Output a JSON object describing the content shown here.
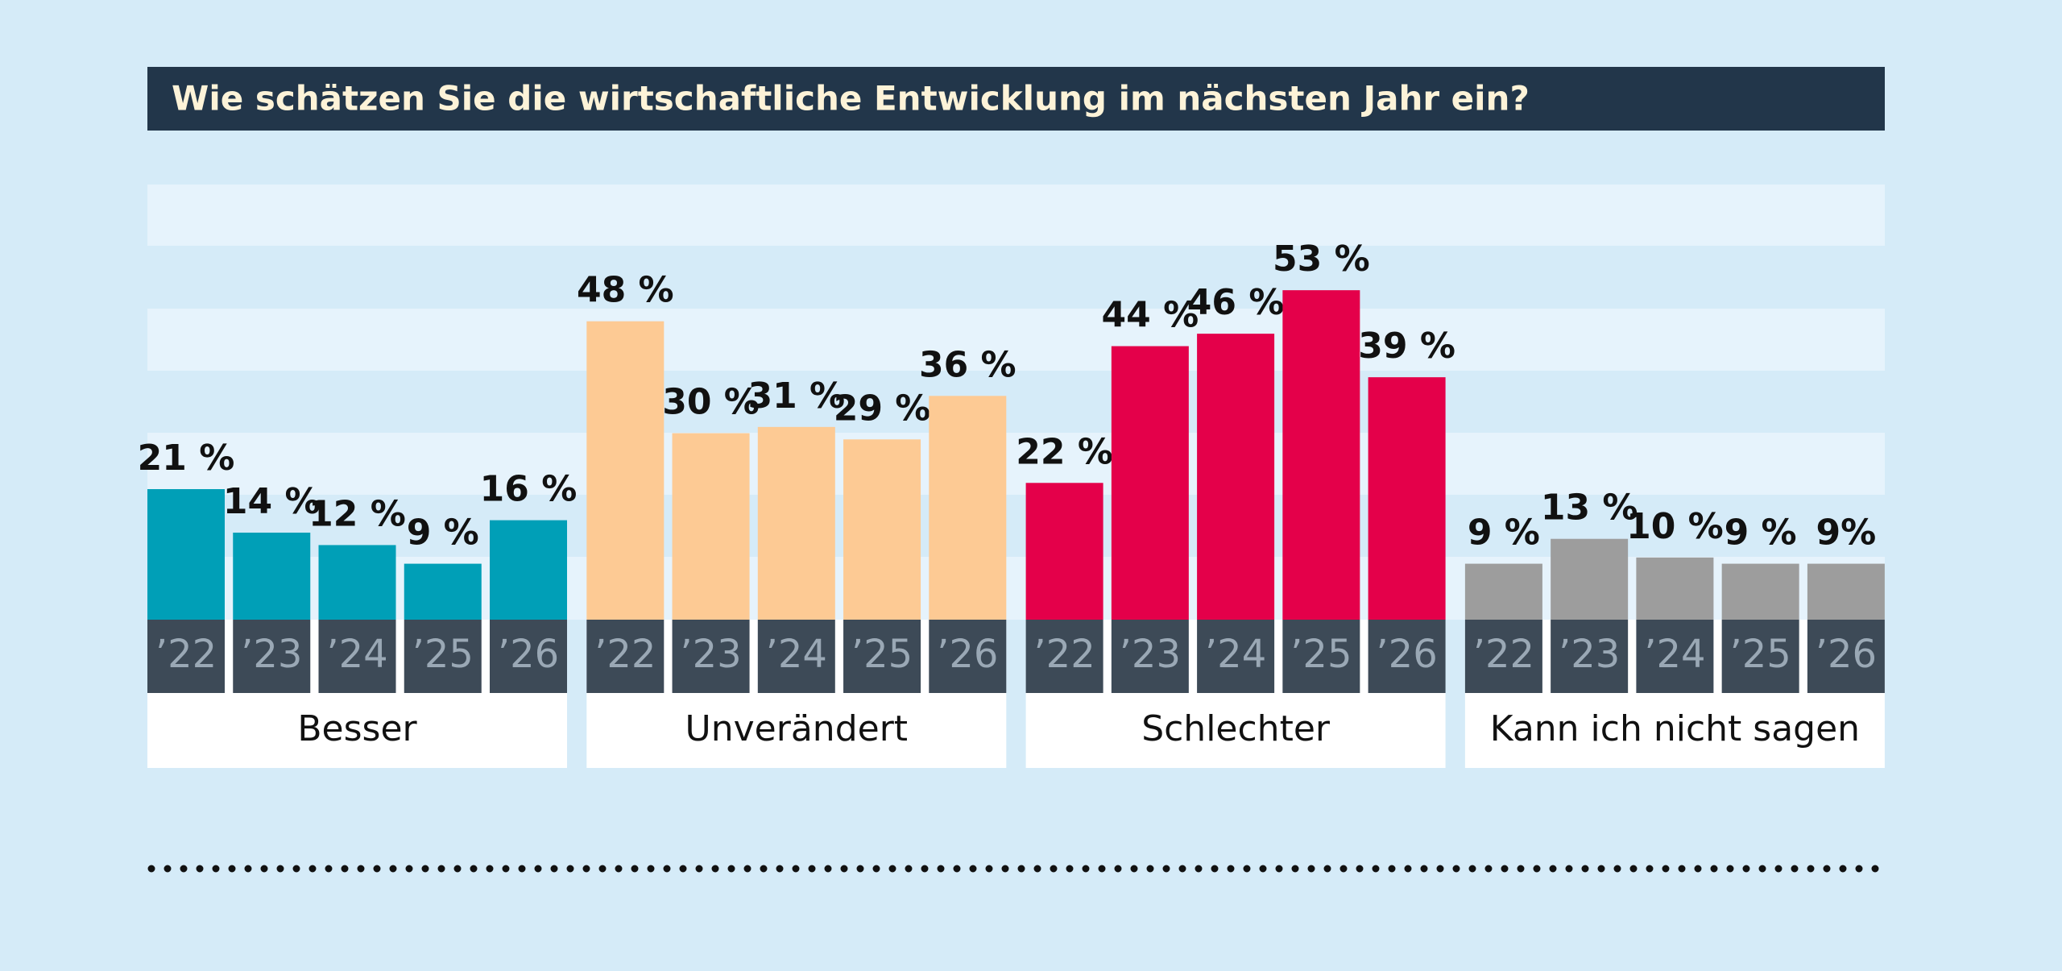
{
  "chart_data": {
    "type": "bar",
    "title": "Wie schätzen Sie die wirtschaftliche Entwicklung im nächsten Jahr ein?",
    "categories": [
      "’22",
      "’23",
      "’24",
      "’25",
      "’26"
    ],
    "ylim": [
      0,
      70
    ],
    "series": [
      {
        "name": "Besser",
        "color": "#009fb7",
        "values": [
          21,
          14,
          12,
          9,
          16
        ],
        "value_labels": [
          "21 %",
          "14 %",
          "12 %",
          "9 %",
          "16 %"
        ]
      },
      {
        "name": "Unverändert",
        "color": "#fdca94",
        "values": [
          48,
          30,
          31,
          29,
          36
        ],
        "value_labels": [
          "48 %",
          "30 %",
          "31 %",
          "29 %",
          "36 %"
        ]
      },
      {
        "name": "Schlechter",
        "color": "#e4004a",
        "values": [
          22,
          44,
          46,
          53,
          39
        ],
        "value_labels": [
          "22 %",
          "44 %",
          "46 %",
          "53 %",
          "39 %"
        ]
      },
      {
        "name": "Kann ich nicht sagen",
        "color": "#9d9d9d",
        "values": [
          9,
          13,
          10,
          9,
          9
        ],
        "value_labels": [
          "9 %",
          "13 %",
          "10 %",
          "9 %",
          "9%"
        ]
      }
    ]
  }
}
